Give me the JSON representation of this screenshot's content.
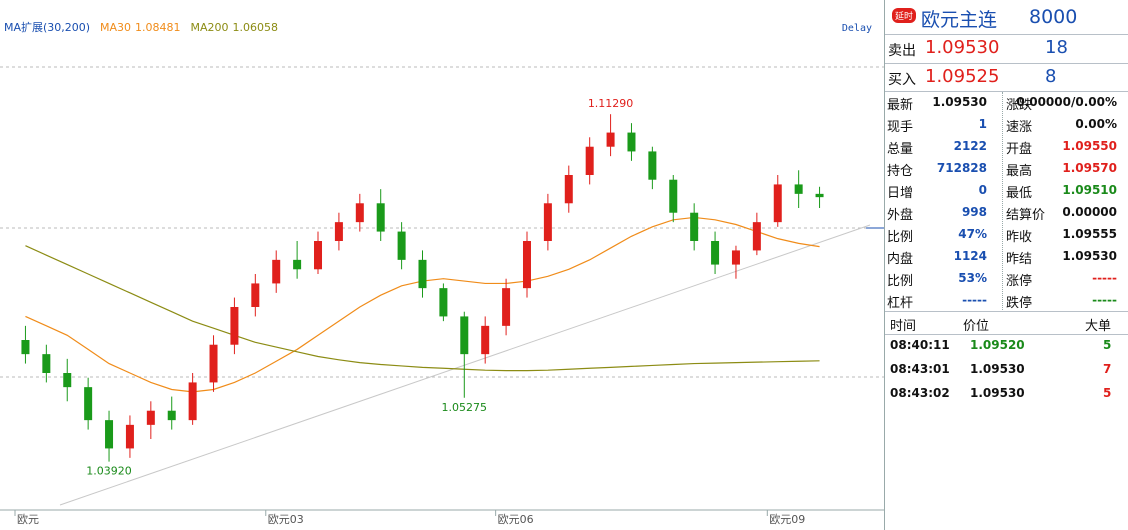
{
  "chart_data": {
    "type": "candlestick",
    "legend_title": "MA扩展(30,200)",
    "delay": "Delay",
    "categories": [
      "欧元",
      null,
      null,
      null,
      null,
      null,
      null,
      null,
      null,
      null,
      null,
      null,
      "欧元03",
      null,
      null,
      null,
      null,
      null,
      null,
      null,
      null,
      null,
      null,
      "欧元06",
      null,
      null,
      null,
      null,
      null,
      null,
      null,
      null,
      null,
      null,
      null,
      null,
      "欧元09",
      null,
      null
    ],
    "ohlc": [
      [
        1.065,
        1.068,
        1.06,
        1.062
      ],
      [
        1.062,
        1.064,
        1.056,
        1.058
      ],
      [
        1.058,
        1.061,
        1.052,
        1.055
      ],
      [
        1.055,
        1.057,
        1.046,
        1.048
      ],
      [
        1.048,
        1.05,
        1.0392,
        1.042
      ],
      [
        1.042,
        1.049,
        1.04,
        1.047
      ],
      [
        1.047,
        1.052,
        1.044,
        1.05
      ],
      [
        1.05,
        1.053,
        1.046,
        1.048
      ],
      [
        1.048,
        1.058,
        1.047,
        1.056
      ],
      [
        1.056,
        1.066,
        1.054,
        1.064
      ],
      [
        1.064,
        1.074,
        1.062,
        1.072
      ],
      [
        1.072,
        1.079,
        1.07,
        1.077
      ],
      [
        1.077,
        1.084,
        1.075,
        1.082
      ],
      [
        1.082,
        1.086,
        1.078,
        1.08
      ],
      [
        1.08,
        1.088,
        1.079,
        1.086
      ],
      [
        1.086,
        1.092,
        1.084,
        1.09
      ],
      [
        1.09,
        1.096,
        1.088,
        1.094
      ],
      [
        1.094,
        1.097,
        1.086,
        1.088
      ],
      [
        1.088,
        1.09,
        1.08,
        1.082
      ],
      [
        1.082,
        1.084,
        1.074,
        1.076
      ],
      [
        1.076,
        1.077,
        1.069,
        1.07
      ],
      [
        1.07,
        1.071,
        1.05275,
        1.062
      ],
      [
        1.062,
        1.07,
        1.06,
        1.068
      ],
      [
        1.068,
        1.078,
        1.066,
        1.076
      ],
      [
        1.076,
        1.088,
        1.074,
        1.086
      ],
      [
        1.086,
        1.096,
        1.084,
        1.094
      ],
      [
        1.094,
        1.102,
        1.092,
        1.1
      ],
      [
        1.1,
        1.108,
        1.098,
        1.106
      ],
      [
        1.106,
        1.1129,
        1.104,
        1.109
      ],
      [
        1.109,
        1.111,
        1.103,
        1.105
      ],
      [
        1.105,
        1.106,
        1.097,
        1.099
      ],
      [
        1.099,
        1.1,
        1.09,
        1.092
      ],
      [
        1.092,
        1.094,
        1.084,
        1.086
      ],
      [
        1.086,
        1.088,
        1.079,
        1.081
      ],
      [
        1.081,
        1.085,
        1.078,
        1.084
      ],
      [
        1.084,
        1.092,
        1.083,
        1.09
      ],
      [
        1.09,
        1.1,
        1.089,
        1.098
      ],
      [
        1.098,
        1.101,
        1.093,
        1.096
      ],
      [
        1.096,
        1.0975,
        1.093,
        1.0953
      ]
    ],
    "up_color": "#e0201c",
    "down_color": "#1a9a1a",
    "series": [
      {
        "name": "MA30",
        "color": "#f08c1a",
        "values": [
          1.07,
          1.068,
          1.066,
          1.063,
          1.06,
          1.058,
          1.056,
          1.0545,
          1.054,
          1.0545,
          1.056,
          1.058,
          1.0605,
          1.063,
          1.066,
          1.069,
          1.072,
          1.0745,
          1.0765,
          1.0775,
          1.078,
          1.0775,
          1.077,
          1.077,
          1.0775,
          1.0785,
          1.08,
          1.082,
          1.0845,
          1.087,
          1.089,
          1.0905,
          1.091,
          1.0905,
          1.0895,
          1.088,
          1.0865,
          1.0855,
          1.08481
        ]
      },
      {
        "name": "MA200",
        "color": "#8c8c14",
        "values": [
          1.085,
          1.083,
          1.081,
          1.079,
          1.077,
          1.075,
          1.073,
          1.071,
          1.069,
          1.0675,
          1.066,
          1.0645,
          1.0635,
          1.0625,
          1.0615,
          1.0608,
          1.0602,
          1.0598,
          1.0595,
          1.0592,
          1.059,
          1.0588,
          1.0586,
          1.0585,
          1.0585,
          1.0586,
          1.0588,
          1.059,
          1.0592,
          1.0594,
          1.0596,
          1.0598,
          1.06,
          1.0601,
          1.0602,
          1.0603,
          1.0604,
          1.0605,
          1.06058
        ]
      }
    ],
    "ylim": [
      1.03,
      1.135
    ],
    "annotations": [
      {
        "value": 1.1129,
        "label": "1.11290"
      },
      {
        "value": 1.05275,
        "label": "1.05275"
      },
      {
        "value": 1.0392,
        "label": "1.03920"
      }
    ]
  },
  "quote": {
    "badge": "延时",
    "name": "欧元主连",
    "code": "8000",
    "sell": {
      "label": "卖出",
      "price": "1.09530",
      "volume": "18"
    },
    "buy": {
      "label": "买入",
      "price": "1.09525",
      "volume": "8"
    },
    "stats": [
      [
        "最新",
        "1.09530",
        "涨跌",
        "0.00000/0.00%"
      ],
      [
        "现手",
        "1",
        "速涨",
        "0.00%"
      ],
      [
        "总量",
        "2122",
        "开盘",
        "1.09550"
      ],
      [
        "持仓",
        "712828",
        "最高",
        "1.09570"
      ],
      [
        "日增",
        "0",
        "最低",
        "1.09510"
      ],
      [
        "外盘",
        "998",
        "结算价",
        "0.00000"
      ],
      [
        "比例",
        "47%",
        "昨收",
        "1.09555"
      ],
      [
        "内盘",
        "1124",
        "昨结",
        "1.09530"
      ],
      [
        "比例",
        "53%",
        "涨停",
        "-----"
      ],
      [
        "杠杆",
        "-----",
        "跌停",
        "-----"
      ]
    ],
    "ticks": {
      "header": [
        "时间",
        "价位",
        "大单"
      ],
      "rows": [
        [
          "08:40:11",
          "1.09520",
          "5"
        ],
        [
          "08:43:01",
          "1.09530",
          "7"
        ],
        [
          "08:43:02",
          "1.09530",
          "5"
        ]
      ]
    }
  }
}
